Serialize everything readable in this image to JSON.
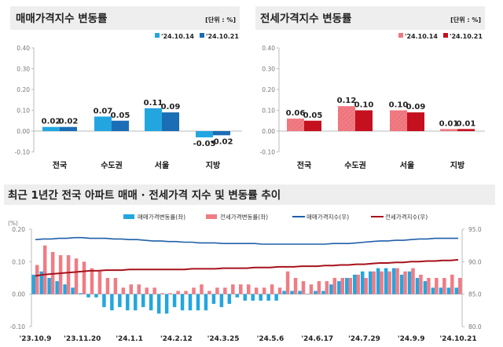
{
  "colors": {
    "sale_prev": "#23a6e0",
    "sale_curr": "#1b6db5",
    "lease_prev": "#f07c84",
    "lease_curr": "#c4101f",
    "sale_line": "#1f5fa8",
    "lease_line": "#a6121c",
    "title_bg": "#eeeeee"
  },
  "chart_data": [
    {
      "type": "bar",
      "title": "매매가격지수 변동률",
      "unit": "[단위 : %]",
      "categories": [
        "전국",
        "수도권",
        "서울",
        "지방"
      ],
      "series": [
        {
          "name": "'24.10.14",
          "values": [
            0.02,
            0.07,
            0.11,
            -0.03
          ]
        },
        {
          "name": "'24.10.21",
          "values": [
            0.02,
            0.05,
            0.09,
            -0.02
          ]
        }
      ],
      "yticks": [
        "0.40",
        "0.30",
        "0.20",
        "0.10",
        "0.00",
        "-0.10"
      ],
      "ylim": [
        -0.1,
        0.4
      ]
    },
    {
      "type": "bar",
      "title": "전세가격지수 변동률",
      "unit": "[단위 : %]",
      "categories": [
        "전국",
        "수도권",
        "서울",
        "지방"
      ],
      "series": [
        {
          "name": "'24.10.14",
          "values": [
            0.06,
            0.12,
            0.1,
            0.01
          ]
        },
        {
          "name": "'24.10.21",
          "values": [
            0.05,
            0.1,
            0.09,
            0.01
          ]
        }
      ],
      "yticks": [
        "0.40",
        "0.30",
        "0.20",
        "0.10",
        "0.00",
        "-0.10"
      ],
      "ylim": [
        -0.1,
        0.4
      ]
    },
    {
      "type": "bar+line",
      "title": "최근 1년간 전국 아파트 매매 · 전세가격 지수 및 변동률 추이",
      "ylabel_left": "(%)",
      "ylim_left": [
        -0.1,
        0.2
      ],
      "yticks_left": [
        "0.20",
        "0.10",
        "0.00",
        "-0.10"
      ],
      "ylim_right": [
        80,
        95
      ],
      "yticks_right": [
        "95.0",
        "90.0",
        "85.0",
        "80.0"
      ],
      "xtick_labels": [
        "'23.10.9",
        "'23.11.20",
        "'24.1.1",
        "'24.2.12",
        "'24.3.25",
        "'24.5.6",
        "'24.6.17",
        "'24.7.29",
        "'24.9.9",
        "'24.10.21"
      ],
      "xtick_every": 6,
      "series": [
        {
          "name": "매매가격변동률(좌)",
          "kind": "bar",
          "values": [
            0.06,
            0.07,
            0.05,
            0.04,
            0.03,
            0.02,
            0.003,
            -0.01,
            -0.01,
            -0.04,
            -0.05,
            -0.04,
            -0.05,
            -0.05,
            -0.04,
            -0.05,
            -0.06,
            -0.06,
            -0.04,
            -0.05,
            -0.05,
            -0.05,
            -0.05,
            -0.03,
            -0.04,
            -0.03,
            -0.01,
            -0.02,
            -0.02,
            -0.02,
            -0.02,
            -0.02,
            0.01,
            0.01,
            0.01,
            0.0,
            0.01,
            0.01,
            0.03,
            0.04,
            0.05,
            0.06,
            0.07,
            0.07,
            0.08,
            0.08,
            0.08,
            0.06,
            0.07,
            0.05,
            0.04,
            0.02,
            0.02,
            0.02,
            0.02
          ]
        },
        {
          "name": "전세가격변동률(좌)",
          "kind": "bar",
          "values": [
            0.09,
            0.15,
            0.13,
            0.12,
            0.12,
            0.11,
            0.1,
            0.08,
            0.07,
            0.05,
            0.05,
            0.02,
            0.03,
            0.03,
            0.02,
            0.02,
            0.003,
            0.003,
            0.01,
            0.01,
            0.02,
            0.03,
            0.01,
            0.02,
            0.02,
            0.03,
            0.03,
            0.03,
            0.02,
            0.02,
            0.03,
            0.02,
            0.07,
            0.05,
            0.04,
            0.03,
            0.04,
            0.04,
            0.05,
            0.05,
            0.05,
            0.06,
            0.05,
            0.07,
            0.07,
            0.07,
            0.08,
            0.07,
            0.08,
            0.06,
            0.05,
            0.05,
            0.05,
            0.06,
            0.05
          ]
        },
        {
          "name": "매매가격지수(우)",
          "kind": "line",
          "values": [
            93.4,
            93.5,
            93.5,
            93.6,
            93.6,
            93.7,
            93.7,
            93.6,
            93.6,
            93.6,
            93.5,
            93.5,
            93.4,
            93.4,
            93.3,
            93.2,
            93.2,
            93.1,
            93.1,
            93.0,
            93.0,
            92.9,
            92.9,
            92.9,
            92.8,
            92.8,
            92.8,
            92.8,
            92.8,
            92.7,
            92.7,
            92.7,
            92.7,
            92.7,
            92.7,
            92.7,
            92.7,
            92.7,
            92.8,
            92.8,
            92.8,
            92.9,
            93.0,
            93.1,
            93.2,
            93.2,
            93.3,
            93.3,
            93.4,
            93.5,
            93.5,
            93.6,
            93.6,
            93.6,
            93.6
          ]
        },
        {
          "name": "전세가격지수(우)",
          "kind": "line",
          "values": [
            87.8,
            88.0,
            88.1,
            88.2,
            88.3,
            88.4,
            88.5,
            88.6,
            88.6,
            88.7,
            88.7,
            88.7,
            88.8,
            88.8,
            88.8,
            88.8,
            88.8,
            88.8,
            88.8,
            88.8,
            88.9,
            88.9,
            88.9,
            88.9,
            89.0,
            89.0,
            89.0,
            89.0,
            89.1,
            89.1,
            89.1,
            89.2,
            89.2,
            89.2,
            89.3,
            89.3,
            89.3,
            89.4,
            89.4,
            89.5,
            89.5,
            89.6,
            89.6,
            89.7,
            89.8,
            89.8,
            89.9,
            89.9,
            90.0,
            90.0,
            90.1,
            90.1,
            90.2,
            90.2,
            90.3
          ]
        }
      ]
    }
  ]
}
